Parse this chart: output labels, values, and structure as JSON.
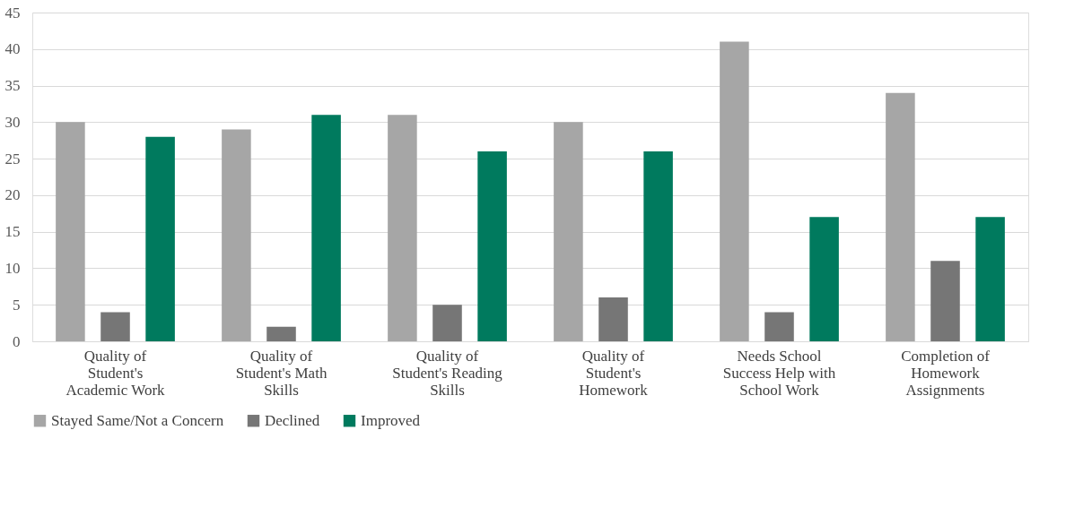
{
  "chart_data": {
    "type": "bar",
    "categories": [
      "Quality of Student's Academic Work",
      "Quality of Student's Math Skills",
      "Quality of Student's Reading Skills",
      "Quality of Student's Homework",
      "Needs School Success Help with School Work",
      "Completion of Homework Assignments"
    ],
    "series": [
      {
        "name": "Stayed Same/Not a Concern",
        "color": "#a6a6a6",
        "values": [
          30,
          29,
          31,
          30,
          41,
          34
        ]
      },
      {
        "name": "Declined",
        "color": "#767676",
        "values": [
          4,
          2,
          5,
          6,
          4,
          11
        ]
      },
      {
        "name": "Improved",
        "color": "#007a5e",
        "values": [
          28,
          31,
          26,
          26,
          17,
          17
        ]
      }
    ],
    "ylim": [
      0,
      45
    ],
    "yticks": [
      0,
      5,
      10,
      15,
      20,
      25,
      30,
      35,
      40,
      45
    ],
    "grid": "y",
    "legend": "bottom"
  }
}
